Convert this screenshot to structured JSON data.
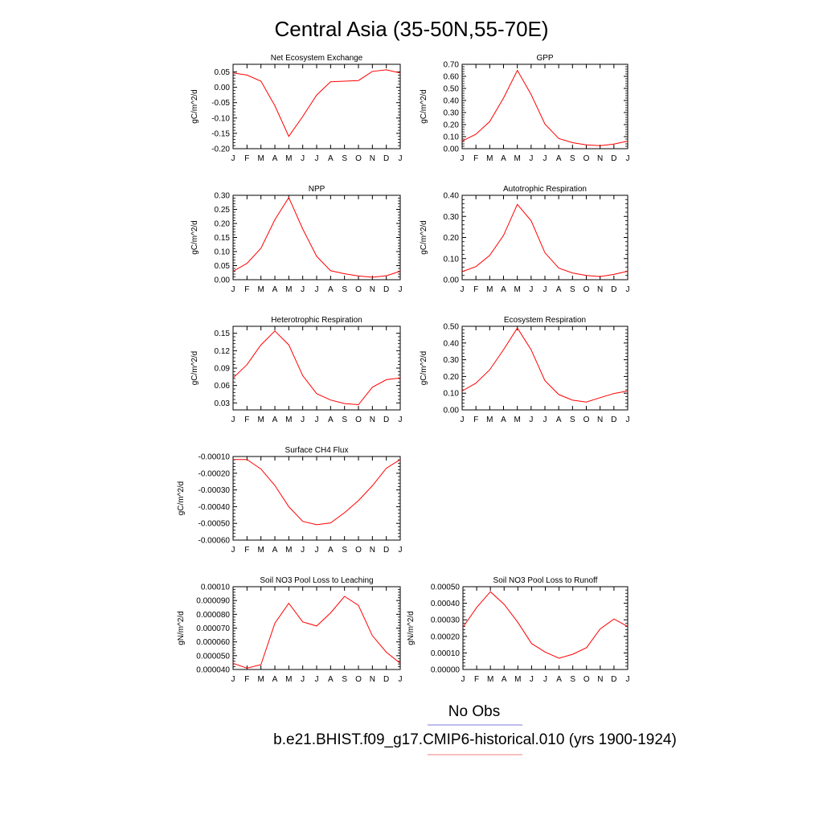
{
  "page_title": "Central Asia (35-50N,55-70E)",
  "legend": {
    "entries": [
      {
        "label": "No Obs",
        "color": "#7b7bd8"
      },
      {
        "label": "b.e21.BHIST.f09_g17.CMIP6-historical.010 (yrs 1900-1924)",
        "color": "#f08080"
      }
    ]
  },
  "months": [
    "J",
    "F",
    "M",
    "A",
    "M",
    "J",
    "J",
    "A",
    "S",
    "O",
    "N",
    "D",
    "J"
  ],
  "chart_data": [
    {
      "type": "line",
      "title": "Net Ecosystem Exchange",
      "ylabel": "gC/m^2/d",
      "ylim": [
        -0.2,
        0.075
      ],
      "yticks": [
        0.05,
        0.0,
        -0.05,
        -0.1,
        -0.15,
        -0.2
      ],
      "ytick_labels": [
        "0.05",
        "0.00",
        "-0.05",
        "-0.10",
        "-0.15",
        "-0.20"
      ],
      "series": [
        {
          "color": "#ff0000",
          "values": [
            0.047,
            0.04,
            0.02,
            -0.06,
            -0.16,
            -0.095,
            -0.025,
            0.018,
            0.02,
            0.022,
            0.052,
            0.057,
            0.047
          ]
        }
      ]
    },
    {
      "type": "line",
      "title": "GPP",
      "ylabel": "gC/m^2/d",
      "ylim": [
        0.0,
        0.7
      ],
      "yticks": [
        0.7,
        0.6,
        0.5,
        0.4,
        0.3,
        0.2,
        0.1,
        0.0
      ],
      "ytick_labels": [
        "0.70",
        "0.60",
        "0.50",
        "0.40",
        "0.30",
        "0.20",
        "0.10",
        "0.00"
      ],
      "series": [
        {
          "color": "#ff0000",
          "values": [
            0.063,
            0.12,
            0.225,
            0.42,
            0.65,
            0.45,
            0.205,
            0.085,
            0.05,
            0.032,
            0.025,
            0.038,
            0.063
          ]
        }
      ]
    },
    {
      "type": "line",
      "title": "NPP",
      "ylabel": "gC/m^2/d",
      "ylim": [
        0.0,
        0.3
      ],
      "yticks": [
        0.3,
        0.25,
        0.2,
        0.15,
        0.1,
        0.05,
        0.0
      ],
      "ytick_labels": [
        "0.30",
        "0.25",
        "0.20",
        "0.15",
        "0.10",
        "0.05",
        "0.00"
      ],
      "series": [
        {
          "color": "#ff0000",
          "values": [
            0.03,
            0.058,
            0.112,
            0.213,
            0.292,
            0.18,
            0.083,
            0.032,
            0.021,
            0.013,
            0.009,
            0.014,
            0.03
          ]
        }
      ]
    },
    {
      "type": "line",
      "title": "Autotrophic Respiration",
      "ylabel": "gC/m^2/d",
      "ylim": [
        0.0,
        0.4
      ],
      "yticks": [
        0.4,
        0.3,
        0.2,
        0.1,
        0.0
      ],
      "ytick_labels": [
        "0.40",
        "0.30",
        "0.20",
        "0.10",
        "0.00"
      ],
      "series": [
        {
          "color": "#ff0000",
          "values": [
            0.038,
            0.062,
            0.115,
            0.21,
            0.357,
            0.28,
            0.128,
            0.055,
            0.032,
            0.02,
            0.015,
            0.025,
            0.04
          ]
        }
      ]
    },
    {
      "type": "line",
      "title": "Heterotrophic Respiration",
      "ylabel": "gC/m^2/d",
      "ylim": [
        0.018,
        0.162
      ],
      "yticks": [
        0.15,
        0.12,
        0.09,
        0.06,
        0.03
      ],
      "ytick_labels": [
        "0.15",
        "0.12",
        "0.09",
        "0.06",
        "0.03"
      ],
      "series": [
        {
          "color": "#ff0000",
          "values": [
            0.073,
            0.096,
            0.13,
            0.154,
            0.13,
            0.077,
            0.046,
            0.035,
            0.029,
            0.027,
            0.057,
            0.07,
            0.073
          ]
        }
      ]
    },
    {
      "type": "line",
      "title": "Ecosystem Respiration",
      "ylabel": "gC/m^2/d",
      "ylim": [
        0.0,
        0.5
      ],
      "yticks": [
        0.5,
        0.4,
        0.3,
        0.2,
        0.1,
        0.0
      ],
      "ytick_labels": [
        "0.50",
        "0.40",
        "0.30",
        "0.20",
        "0.10",
        "0.00"
      ],
      "series": [
        {
          "color": "#ff0000",
          "values": [
            0.113,
            0.16,
            0.24,
            0.36,
            0.49,
            0.36,
            0.175,
            0.092,
            0.058,
            0.047,
            0.073,
            0.098,
            0.113
          ]
        }
      ]
    },
    {
      "type": "line",
      "title": "Surface CH4 Flux",
      "ylabel": "gC/m^2/d",
      "ylim": [
        -0.0006,
        -0.0001
      ],
      "yticks": [
        -0.0001,
        -0.0002,
        -0.0003,
        -0.0004,
        -0.0005,
        -0.0006
      ],
      "ytick_labels": [
        "-0.00010",
        "-0.00020",
        "-0.00030",
        "-0.00040",
        "-0.00050",
        "-0.00060"
      ],
      "series": [
        {
          "color": "#ff0000",
          "values": [
            -0.000118,
            -0.000118,
            -0.000175,
            -0.000273,
            -0.0004,
            -0.000488,
            -0.000508,
            -0.000497,
            -0.000436,
            -0.000364,
            -0.000275,
            -0.00017,
            -0.000118
          ]
        }
      ]
    },
    {
      "type": "line",
      "title": "Soil NO3 Pool Loss to Leaching",
      "ylabel": "gN/m^2/d",
      "ylim": [
        4e-05,
        0.0001
      ],
      "yticks": [
        0.0001,
        9e-05,
        8e-05,
        7e-05,
        6e-05,
        5e-05,
        4e-05
      ],
      "ytick_labels": [
        "0.00010",
        "0.000090",
        "0.000080",
        "0.000070",
        "0.000060",
        "0.000050",
        "0.000040"
      ],
      "series": [
        {
          "color": "#ff0000",
          "values": [
            4.45e-05,
            4.1e-05,
            4.35e-05,
            7.35e-05,
            8.8e-05,
            7.45e-05,
            7.15e-05,
            8.1e-05,
            9.3e-05,
            8.65e-05,
            6.45e-05,
            5.25e-05,
            4.45e-05
          ]
        }
      ]
    },
    {
      "type": "line",
      "title": "Soil NO3 Pool Loss to Runoff",
      "ylabel": "gN/m^2/d",
      "ylim": [
        0.0,
        0.0005
      ],
      "yticks": [
        0.0005,
        0.0004,
        0.0003,
        0.0002,
        0.0001,
        0.0
      ],
      "ytick_labels": [
        "0.00050",
        "0.00040",
        "0.00030",
        "0.00020",
        "0.00010",
        "0.00000"
      ],
      "series": [
        {
          "color": "#ff0000",
          "values": [
            0.000255,
            0.000375,
            0.00047,
            0.000393,
            0.000285,
            0.000157,
            0.000105,
            6.8e-05,
            9.2e-05,
            0.000132,
            0.000245,
            0.000305,
            0.00026
          ]
        }
      ]
    }
  ]
}
